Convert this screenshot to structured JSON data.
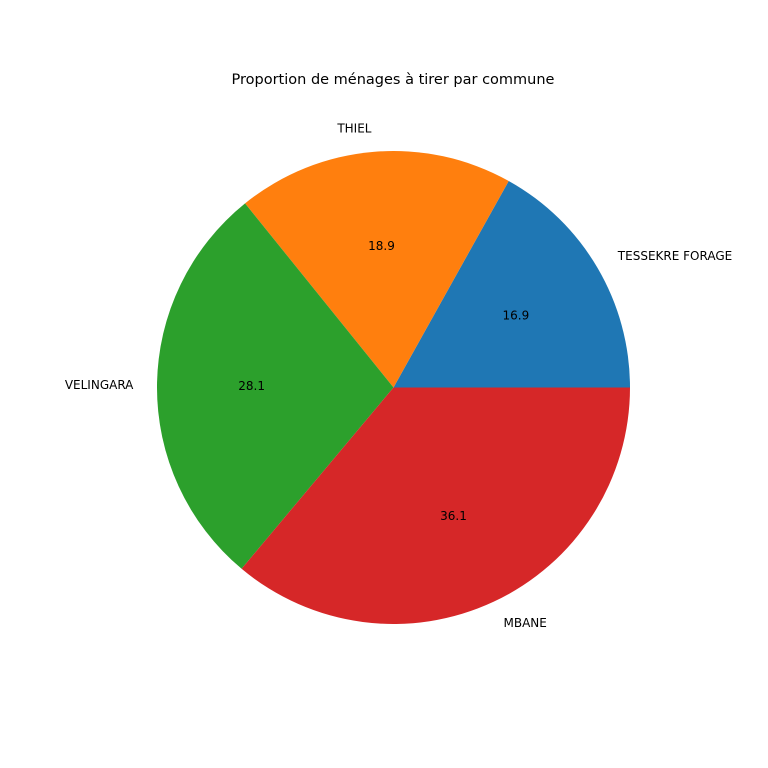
{
  "chart_data": {
    "type": "pie",
    "title": "Proportion de ménages à tirer par commune",
    "categories": [
      "TESSEKRE FORAGE",
      "THIEL",
      "VELINGARA",
      "MBANE"
    ],
    "values": [
      16.9,
      18.9,
      28.1,
      36.1
    ],
    "value_labels": [
      "16.9",
      "18.9",
      "28.1",
      "36.1"
    ],
    "colors": [
      "#1f77b4",
      "#ff7f0e",
      "#2ca02c",
      "#d62728"
    ],
    "start_angle": 0,
    "direction": "counterclockwise",
    "legend": "none"
  }
}
